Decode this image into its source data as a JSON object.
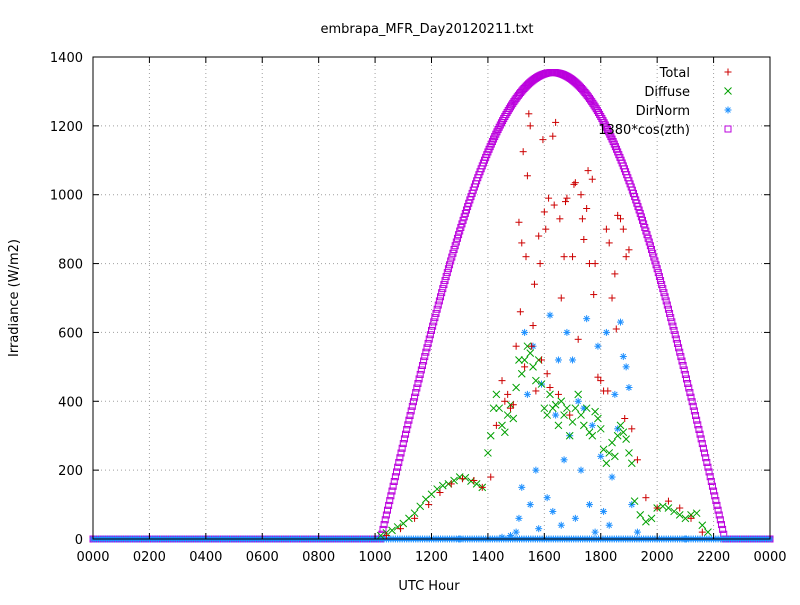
{
  "chart_data": {
    "type": "scatter",
    "title": "embrapa_MFR_Day20120211.txt",
    "xlabel": "UTC Hour",
    "ylabel": "Irradiance (W/m2)",
    "xlim": [
      0,
      24
    ],
    "ylim": [
      0,
      1400
    ],
    "grid": true,
    "legend_position": "top-right",
    "x_ticks": [
      {
        "value": 0,
        "label": "0000"
      },
      {
        "value": 2,
        "label": "0200"
      },
      {
        "value": 4,
        "label": "0400"
      },
      {
        "value": 6,
        "label": "0600"
      },
      {
        "value": 8,
        "label": "0800"
      },
      {
        "value": 10,
        "label": "1000"
      },
      {
        "value": 12,
        "label": "1200"
      },
      {
        "value": 14,
        "label": "1400"
      },
      {
        "value": 16,
        "label": "1600"
      },
      {
        "value": 18,
        "label": "1800"
      },
      {
        "value": 20,
        "label": "2000"
      },
      {
        "value": 22,
        "label": "2200"
      },
      {
        "value": 24,
        "label": "0000"
      }
    ],
    "y_ticks": [
      0,
      200,
      400,
      600,
      800,
      1000,
      1200,
      1400
    ],
    "series": [
      {
        "name": "Total",
        "marker": "plus",
        "color": "#cc0000",
        "x": [
          10.4,
          10.9,
          11.4,
          11.9,
          12.3,
          12.7,
          13.1,
          13.5,
          13.8,
          14.1,
          14.3,
          14.5,
          14.6,
          14.7,
          14.8,
          14.9,
          15.0,
          15.1,
          15.15,
          15.2,
          15.25,
          15.3,
          15.35,
          15.4,
          15.45,
          15.5,
          15.55,
          15.6,
          15.65,
          15.7,
          15.8,
          15.85,
          15.9,
          15.95,
          16.0,
          16.05,
          16.1,
          16.15,
          16.2,
          16.3,
          16.35,
          16.4,
          16.5,
          16.55,
          16.6,
          16.7,
          16.75,
          16.8,
          16.9,
          17.0,
          17.05,
          17.1,
          17.2,
          17.3,
          17.35,
          17.4,
          17.5,
          17.55,
          17.6,
          17.7,
          17.75,
          17.8,
          17.9,
          18.0,
          18.1,
          18.2,
          18.25,
          18.3,
          18.4,
          18.5,
          18.55,
          18.6,
          18.7,
          18.8,
          18.85,
          18.9,
          19.0,
          19.1,
          19.3,
          19.6,
          20.0,
          20.4,
          20.8,
          21.2,
          21.6
        ],
        "y": [
          10,
          30,
          60,
          100,
          135,
          160,
          175,
          170,
          150,
          180,
          330,
          460,
          400,
          420,
          380,
          390,
          560,
          920,
          660,
          860,
          1125,
          500,
          820,
          1055,
          1235,
          1200,
          560,
          620,
          740,
          430,
          880,
          800,
          520,
          1160,
          950,
          900,
          480,
          990,
          440,
          1170,
          970,
          1210,
          420,
          930,
          700,
          820,
          980,
          990,
          360,
          820,
          1030,
          1035,
          580,
          1000,
          930,
          870,
          960,
          1070,
          800,
          1045,
          710,
          800,
          470,
          460,
          430,
          900,
          430,
          860,
          700,
          770,
          610,
          940,
          930,
          900,
          350,
          820,
          840,
          320,
          230,
          120,
          90,
          110,
          90,
          60,
          20
        ]
      },
      {
        "name": "Diffuse",
        "marker": "x",
        "color": "#00a000",
        "x": [
          10.2,
          10.4,
          10.6,
          10.8,
          11.0,
          11.2,
          11.4,
          11.6,
          11.8,
          12.0,
          12.2,
          12.4,
          12.6,
          12.8,
          13.0,
          13.2,
          13.4,
          13.6,
          13.8,
          14.0,
          14.1,
          14.2,
          14.3,
          14.4,
          14.5,
          14.6,
          14.7,
          14.8,
          14.9,
          15.0,
          15.1,
          15.2,
          15.3,
          15.4,
          15.5,
          15.6,
          15.7,
          15.8,
          15.9,
          16.0,
          16.1,
          16.2,
          16.3,
          16.4,
          16.5,
          16.6,
          16.7,
          16.8,
          16.9,
          17.0,
          17.1,
          17.2,
          17.3,
          17.4,
          17.5,
          17.6,
          17.7,
          17.8,
          17.9,
          18.0,
          18.1,
          18.2,
          18.3,
          18.4,
          18.5,
          18.6,
          18.7,
          18.8,
          18.9,
          19.0,
          19.1,
          19.2,
          19.4,
          19.6,
          19.8,
          20.0,
          20.2,
          20.4,
          20.6,
          20.8,
          21.0,
          21.2,
          21.4,
          21.6,
          21.8
        ],
        "y": [
          10,
          18,
          25,
          35,
          45,
          60,
          75,
          95,
          115,
          130,
          145,
          155,
          160,
          170,
          180,
          178,
          168,
          160,
          150,
          250,
          300,
          380,
          420,
          380,
          330,
          310,
          360,
          390,
          350,
          440,
          520,
          480,
          520,
          560,
          540,
          500,
          460,
          520,
          450,
          380,
          360,
          420,
          380,
          390,
          330,
          400,
          360,
          380,
          300,
          340,
          380,
          420,
          360,
          330,
          380,
          310,
          300,
          370,
          350,
          320,
          260,
          220,
          250,
          280,
          240,
          300,
          330,
          310,
          290,
          250,
          220,
          110,
          70,
          50,
          60,
          90,
          95,
          90,
          80,
          70,
          60,
          70,
          75,
          40,
          20
        ]
      },
      {
        "name": "DirNorm",
        "marker": "star",
        "color": "#1e90ff",
        "x": [
          0,
          12.0,
          13.0,
          14.0,
          14.5,
          14.8,
          15.0,
          15.1,
          15.2,
          15.3,
          15.4,
          15.5,
          15.6,
          15.7,
          15.8,
          15.9,
          16.0,
          16.1,
          16.2,
          16.3,
          16.4,
          16.5,
          16.6,
          16.7,
          16.8,
          16.9,
          17.0,
          17.1,
          17.2,
          17.3,
          17.4,
          17.5,
          17.6,
          17.7,
          17.8,
          17.9,
          18.0,
          18.1,
          18.2,
          18.3,
          18.4,
          18.5,
          18.6,
          18.7,
          18.8,
          18.9,
          19.0,
          19.1,
          19.3,
          20.0,
          21.0,
          22.0,
          24.0
        ],
        "y": [
          0,
          0,
          0,
          0,
          5,
          10,
          20,
          60,
          150,
          600,
          420,
          100,
          560,
          200,
          30,
          450,
          0,
          120,
          650,
          80,
          360,
          520,
          40,
          230,
          600,
          300,
          520,
          60,
          400,
          200,
          380,
          640,
          100,
          330,
          20,
          560,
          240,
          80,
          600,
          40,
          180,
          420,
          320,
          630,
          530,
          500,
          440,
          100,
          20,
          0,
          0,
          0,
          0
        ]
      },
      {
        "name": "1380*cos(zth)",
        "marker": "square",
        "color": "#bb00dd",
        "x": [],
        "y": [],
        "note_formula_params": {
          "peak_value": 1355,
          "peak_hour": 16.3,
          "sunrise_hour": 10.2,
          "sunset_hour": 22.4
        }
      }
    ]
  }
}
